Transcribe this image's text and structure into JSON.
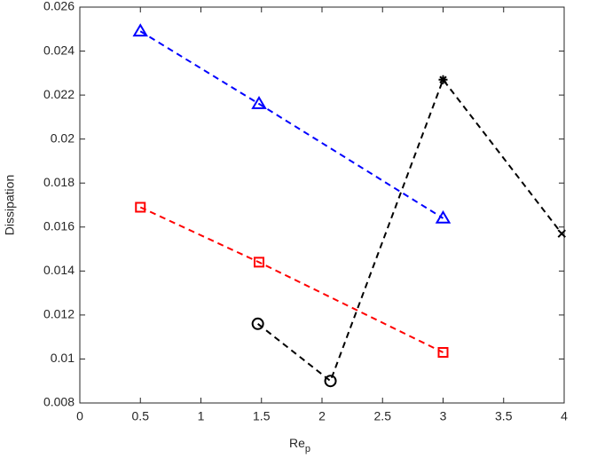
{
  "chart_data": {
    "type": "line",
    "xlabel": "Re",
    "xlabel_subscript": "p",
    "ylabel": "Dissipation",
    "xlim": [
      0,
      4
    ],
    "xticks": [
      0,
      0.5,
      1,
      1.5,
      2,
      2.5,
      3,
      3.5,
      4
    ],
    "ylim": [
      0.008,
      0.026
    ],
    "yticks": [
      0.008,
      0.01,
      0.012,
      0.014,
      0.016,
      0.018,
      0.02,
      0.022,
      0.024,
      0.026
    ],
    "series": [
      {
        "color": "#0000ff",
        "marker": "triangle",
        "x": [
          0.5,
          1.48,
          3.0
        ],
        "values": [
          0.0249,
          0.0216,
          0.0164
        ]
      },
      {
        "color": "#ff0000",
        "marker": "square",
        "x": [
          0.5,
          1.48,
          3.0
        ],
        "values": [
          0.0169,
          0.0144,
          0.0103
        ]
      },
      {
        "color": "#000000",
        "markers": [
          "circle",
          "circle",
          "asterisk",
          "cross"
        ],
        "x": [
          1.47,
          2.07,
          3.0,
          3.98
        ],
        "values": [
          0.0116,
          0.009,
          0.0227,
          0.0157
        ]
      }
    ]
  }
}
